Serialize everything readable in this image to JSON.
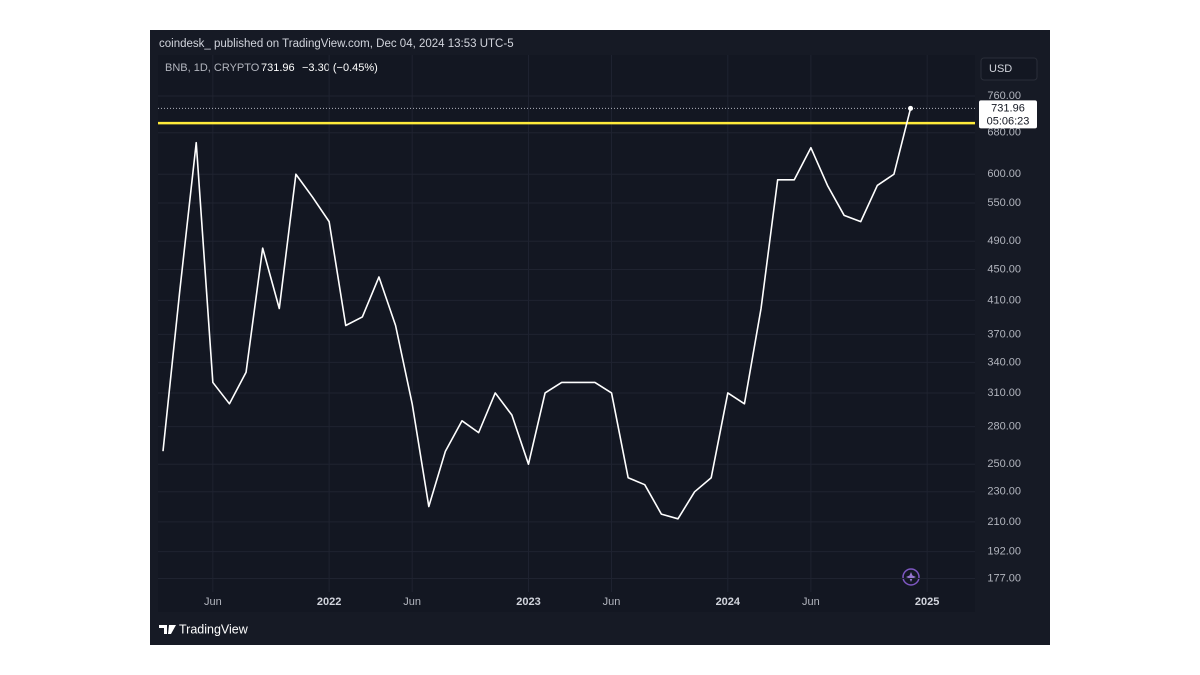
{
  "chart_data": {
    "type": "line",
    "header": "coindesk_ published on TradingView.com, Dec 04, 2024 13:53 UTC-5",
    "symbol": "BNB, 1D, CRYPTO",
    "change": "−3.30 (−0.45%)",
    "currency": "USD",
    "countdown": "05:06:23",
    "brand": "TradingView",
    "color": "#ffffff",
    "log_scale": true,
    "grid": true,
    "level_line": {
      "value": 700,
      "color": "#ffeb3b"
    },
    "x": [
      "2021-03",
      "2021-04",
      "2021-05",
      "2021-06",
      "2021-07",
      "2021-08",
      "2021-09",
      "2021-10",
      "2021-11",
      "2021-12",
      "2022-01",
      "2022-02",
      "2022-03",
      "2022-04",
      "2022-05",
      "2022-06",
      "2022-07",
      "2022-08",
      "2022-09",
      "2022-10",
      "2022-11",
      "2022-12",
      "2023-01",
      "2023-02",
      "2023-03",
      "2023-04",
      "2023-05",
      "2023-06",
      "2023-07",
      "2023-08",
      "2023-09",
      "2023-10",
      "2023-11",
      "2023-12",
      "2024-01",
      "2024-02",
      "2024-03",
      "2024-04",
      "2024-05",
      "2024-06",
      "2024-07",
      "2024-08",
      "2024-09",
      "2024-10",
      "2024-11",
      "2024-12"
    ],
    "values": [
      260,
      420,
      660,
      320,
      300,
      330,
      480,
      400,
      600,
      560,
      520,
      380,
      390,
      440,
      380,
      300,
      220,
      260,
      285,
      275,
      310,
      290,
      250,
      310,
      320,
      320,
      320,
      310,
      240,
      235,
      215,
      212,
      230,
      240,
      310,
      300,
      400,
      590,
      590,
      650,
      580,
      530,
      520,
      580,
      600,
      731.96
    ],
    "xlim": [
      "2021-03",
      "2025-04"
    ],
    "xticks": [
      {
        "value": "2021-06",
        "label": "Jun"
      },
      {
        "value": "2022-01",
        "label": "2022"
      },
      {
        "value": "2022-06",
        "label": "Jun"
      },
      {
        "value": "2023-01",
        "label": "2023"
      },
      {
        "value": "2023-06",
        "label": "Jun"
      },
      {
        "value": "2024-01",
        "label": "2024"
      },
      {
        "value": "2024-06",
        "label": "Jun"
      },
      {
        "value": "2025-01",
        "label": "2025"
      }
    ],
    "ylim": [
      160,
      860
    ],
    "yticks": [
      {
        "value": 760,
        "label": "760.00"
      },
      {
        "value": 680,
        "label": "680.00"
      },
      {
        "value": 600,
        "label": "600.00"
      },
      {
        "value": 550,
        "label": "550.00"
      },
      {
        "value": 490,
        "label": "490.00"
      },
      {
        "value": 450,
        "label": "450.00"
      },
      {
        "value": 410,
        "label": "410.00"
      },
      {
        "value": 370,
        "label": "370.00"
      },
      {
        "value": 340,
        "label": "340.00"
      },
      {
        "value": 310,
        "label": "310.00"
      },
      {
        "value": 280,
        "label": "280.00"
      },
      {
        "value": 250,
        "label": "250.00"
      },
      {
        "value": 230,
        "label": "230.00"
      },
      {
        "value": 210,
        "label": "210.00"
      },
      {
        "value": 192,
        "label": "192.00"
      },
      {
        "value": 177,
        "label": "177.00"
      }
    ]
  }
}
